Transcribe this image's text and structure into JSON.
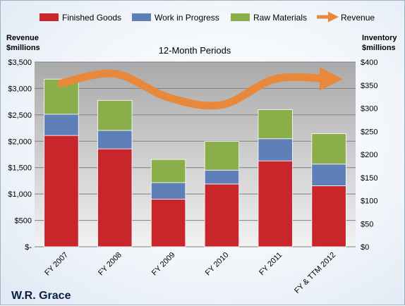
{
  "chart_data": {
    "type": "bar",
    "subtitle": "12-Month Periods",
    "company": "W.R. Grace",
    "left_axis": {
      "title": [
        "Revenue",
        "$millions"
      ],
      "ticks": [
        "$-",
        "$500",
        "$1,000",
        "$1,500",
        "$2,000",
        "$2,500",
        "$3,000",
        "$3,500"
      ],
      "ylim": [
        0,
        3500
      ]
    },
    "right_axis": {
      "title": [
        "Inventory",
        "$millions"
      ],
      "ticks": [
        "$0",
        "$50",
        "$100",
        "$150",
        "$200",
        "$250",
        "$300",
        "$350",
        "$400"
      ],
      "ylim": [
        0,
        400
      ]
    },
    "categories": [
      "FY 2007",
      "FY 2008",
      "FY 2009",
      "FY 2010",
      "FY 2011",
      "FY & TTM 2012"
    ],
    "series": [
      {
        "name": "Finished Goods",
        "axis": "right",
        "color": "#c8262b",
        "values": [
          241,
          212,
          103,
          136,
          186,
          132
        ]
      },
      {
        "name": "Work in Progress",
        "axis": "right",
        "color": "#5f7fb8",
        "values": [
          46,
          40,
          36,
          30,
          48,
          47
        ]
      },
      {
        "name": "Raw Materials",
        "axis": "right",
        "color": "#8aae4a",
        "values": [
          76,
          65,
          50,
          62,
          63,
          66
        ]
      },
      {
        "name": "Revenue",
        "axis": "left",
        "color": "#e8883a",
        "type": "line",
        "values": [
          3100,
          3280,
          2830,
          2690,
          3180,
          3180
        ]
      }
    ],
    "grid": true,
    "legend": "top"
  }
}
